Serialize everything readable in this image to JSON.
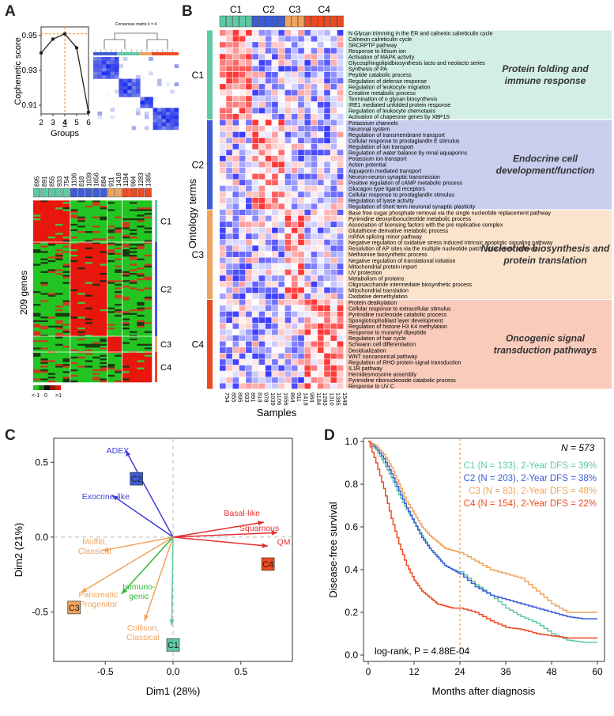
{
  "panels": {
    "A": "A",
    "B": "B",
    "C": "C",
    "D": "D"
  },
  "colors": {
    "C1": "#5fc9a3",
    "C2": "#3d5cd6",
    "C3": "#f0a35e",
    "C4": "#ee4a22",
    "bandC1": "#d3efe3",
    "bandC2": "#c9ceef",
    "bandC3": "#fbe3cc",
    "bandC4": "#f9cbbb"
  },
  "panelA": {
    "coph": {
      "chart_data": {
        "type": "line",
        "x": [
          2,
          3,
          4,
          5,
          6
        ],
        "y": [
          0.94,
          0.948,
          0.951,
          0.943,
          0.906
        ],
        "xlabel": "Groups",
        "ylabel": "Cophenetic score",
        "xlim": [
          2,
          6
        ],
        "ylim": [
          0.905,
          0.955
        ],
        "xticks": [
          "2",
          "3",
          "4",
          "5",
          "6"
        ],
        "yticks": [
          "0.95",
          "0.93",
          "0.91"
        ],
        "highlight_x": 4
      }
    },
    "consensus_title": "Consensus matrix k = 4",
    "genes_label": "209 genes",
    "sample_ids": [
      "895",
      "891",
      "855",
      "933",
      "754",
      "1106",
      "818",
      "1039",
      "1656",
      "884",
      "911",
      "1418",
      "1184",
      "984",
      "1283",
      "1385"
    ],
    "cluster_labels": [
      "C1",
      "C2",
      "C3",
      "C4"
    ],
    "scale_labels": [
      "<-1",
      "0",
      ">1"
    ]
  },
  "panelB": {
    "top_clusters": [
      "C1",
      "C2",
      "C3",
      "C4"
    ],
    "y_axis": "Ontology terms",
    "x_axis": "Samples",
    "samples": [
      "754",
      "855",
      "895",
      "933",
      "891",
      "818",
      "978",
      "1039",
      "1106",
      "1656",
      "864",
      "911",
      "1418",
      "984",
      "1184",
      "1283",
      "1310",
      "1385",
      "1548"
    ],
    "groups": [
      {
        "cluster": "C1",
        "label": "Protein folding and immune response",
        "terms": [
          "N Glycan trimming in the ER and calnexin calreticulin cycle",
          "Calnexin calreticulin cycle",
          "SRCRPTP pathway",
          "Response to lithium ion",
          "Activation of MAPK activity",
          "Glycosphingolipidbiosynthesis lacto and neolacto series",
          "Synthesis of PA",
          "Peptide catabolic process",
          "Regulation of defense response",
          "Regulation of leukocyte migration",
          "Creatine metabolic process",
          "Termination of o glycan biosynthesis",
          "IRE1 mediated unfolded protein response",
          "Regulation of leukocyte chemotaxis",
          "Activation of chaperone genes by XBP1S"
        ]
      },
      {
        "cluster": "C2",
        "label": "Endocrine cell development/function",
        "terms": [
          "Potassium channels",
          "Neuronal system",
          "Regulation of transmembrane transport",
          "Cellular response to prostaglandin E stimulus",
          "Regulation of ion transport",
          "Regulation of water balance by renal aquaporins",
          "Potassium ion transport",
          "Action potential",
          "Aquaporin mediated transport",
          "Neuron-neuron synaptic transmission",
          "Positive regulation of cAMP metabolic process",
          "Glucagon type ligand receptors",
          "Cellular response to prostaglandin stimulus",
          "Regulation of lyase activity",
          "Regulation of short term neuronal synaptic plasticity"
        ]
      },
      {
        "cluster": "C3",
        "label": "Nucleotide biosynthesis and protein translation",
        "terms": [
          "Base free sugar phosphate removal via the single nucleotide replacement pathway",
          "Pyrimidine deoxyribonucleotide metabolic process",
          "Association of licensing factors with the pre replicative complex",
          "Glutathione derivative metabolic process",
          "mRNA splicing minor pathway",
          "Negative regulation of oxidative stress induced intrinsic apoptotic signaling pathway",
          "Resolution of AP sites via the multiple nucleotide patch replacement pathway",
          "Methionine biosynthetic process",
          "Negative regulation of translational initiation",
          "Mitochondrial protein import",
          "UV protection",
          "Metabolism of proteins",
          "Oligosaccharide intermediate biosynthetic process",
          "Mitochondrial translation",
          "Oxidative demethylation"
        ]
      },
      {
        "cluster": "C4",
        "label": "Oncogenic signal transduction pathways",
        "terms": [
          "Protein dealkylation",
          "Cellular response to extracellular stimulus",
          "Pyrimidine nucleoside catabolic process",
          "Spongiotrophoblast layer development",
          "Regulation of histone H3 K4 methylation",
          "Response to muramyl dipeptide",
          "Regulation of hair cycle",
          "Schwann cell differentiation",
          "Decidualization",
          "WNT noncanonical pathway",
          "Regulation of RHO protein signal transduction",
          "IL1R pathway",
          "Hemidesmosome assembly",
          "Pyrimidine ribonucleoside catabolic process",
          "Response to UV C"
        ]
      }
    ]
  },
  "panelC": {
    "chart_data": {
      "type": "scatter",
      "xlabel": "Dim1 (28%)",
      "ylabel": "Dim2 (21%)",
      "xlim": [
        -0.88,
        0.88
      ],
      "ylim": [
        -0.83,
        0.66
      ],
      "xticks": [
        "-0.5",
        "0.0",
        "0.5"
      ],
      "yticks": [
        "0.5",
        "0.0",
        "-0.5"
      ],
      "arrows": [
        {
          "name": "ADEX",
          "x": -0.35,
          "y": 0.58,
          "color": "#3d3fd6"
        },
        {
          "name": "Exocrine-like",
          "x": -0.45,
          "y": 0.28,
          "color": "#3d3fd6"
        },
        {
          "name": "Basal-like",
          "x": 0.67,
          "y": 0.1,
          "color": "#e53030"
        },
        {
          "name": "Squamous",
          "x": 0.77,
          "y": 0.03,
          "color": "#e53030"
        },
        {
          "name": "QM",
          "x": 0.7,
          "y": -0.06,
          "color": "#e53030"
        },
        {
          "name": "Moffitt, Classical",
          "x": -0.52,
          "y": -0.09,
          "color": "#f0a35e"
        },
        {
          "name": "Pancreatic Progenitor",
          "x": -0.68,
          "y": -0.37,
          "color": "#f0a35e"
        },
        {
          "name": "Immuno-genic",
          "x": -0.38,
          "y": -0.38,
          "color": "#32b832"
        },
        {
          "name": "Collison, Classical",
          "x": -0.21,
          "y": -0.56,
          "color": "#f0a35e"
        },
        {
          "name": "C1",
          "x": -0.01,
          "y": -0.59,
          "color": "#5fc9a3"
        }
      ],
      "points": [
        {
          "name": "C2",
          "x": -0.27,
          "y": 0.39
        },
        {
          "name": "C4",
          "x": 0.7,
          "y": -0.18
        },
        {
          "name": "C3",
          "x": -0.73,
          "y": -0.47
        },
        {
          "name": "C1",
          "x": 0.0,
          "y": -0.72
        }
      ]
    }
  },
  "panelD": {
    "chart_data": {
      "type": "line",
      "xlabel": "Months after diagnosis",
      "ylabel": "Disease-free survival",
      "xlim": [
        0,
        60
      ],
      "ylim": [
        0,
        1
      ],
      "xticks": [
        "0",
        "12",
        "24",
        "36",
        "48",
        "60"
      ],
      "yticks": [
        "1.0",
        "0.8",
        "0.6",
        "0.4",
        "0.2",
        "0.0"
      ],
      "series": [
        {
          "name": "C1",
          "x": [
            0,
            2,
            4,
            6,
            8,
            10,
            12,
            14,
            16,
            18,
            20,
            22,
            24,
            28,
            32,
            36,
            40,
            44,
            48,
            52,
            56,
            60
          ],
          "y": [
            1,
            0.96,
            0.9,
            0.83,
            0.75,
            0.68,
            0.62,
            0.56,
            0.5,
            0.46,
            0.42,
            0.4,
            0.39,
            0.33,
            0.28,
            0.22,
            0.18,
            0.15,
            0.1,
            0.07,
            0.06,
            0.06
          ]
        },
        {
          "name": "C2",
          "x": [
            0,
            2,
            4,
            6,
            8,
            10,
            12,
            14,
            16,
            18,
            20,
            22,
            24,
            28,
            32,
            36,
            40,
            44,
            48,
            52,
            56,
            60
          ],
          "y": [
            1,
            0.97,
            0.92,
            0.85,
            0.77,
            0.69,
            0.62,
            0.55,
            0.5,
            0.46,
            0.42,
            0.4,
            0.38,
            0.32,
            0.28,
            0.26,
            0.24,
            0.22,
            0.2,
            0.18,
            0.17,
            0.17
          ]
        },
        {
          "name": "C3",
          "x": [
            0,
            2,
            4,
            6,
            8,
            10,
            12,
            14,
            16,
            18,
            20,
            22,
            24,
            28,
            32,
            36,
            40,
            44,
            48,
            52,
            56,
            60
          ],
          "y": [
            1,
            0.98,
            0.94,
            0.88,
            0.8,
            0.72,
            0.66,
            0.6,
            0.56,
            0.53,
            0.5,
            0.49,
            0.48,
            0.44,
            0.4,
            0.38,
            0.36,
            0.3,
            0.24,
            0.2,
            0.2,
            0.2
          ]
        },
        {
          "name": "C4",
          "x": [
            0,
            2,
            4,
            6,
            8,
            10,
            12,
            14,
            16,
            18,
            20,
            22,
            24,
            28,
            32,
            36,
            40,
            44,
            48,
            52,
            56,
            60
          ],
          "y": [
            1,
            0.9,
            0.78,
            0.64,
            0.52,
            0.42,
            0.35,
            0.3,
            0.27,
            0.24,
            0.23,
            0.22,
            0.22,
            0.2,
            0.16,
            0.13,
            0.12,
            0.1,
            0.09,
            0.08,
            0.08,
            0.08
          ]
        }
      ],
      "vline_x": 24,
      "legend": [
        {
          "cluster": "C1",
          "text": "C1 (N = 133), 2-Year DFS = 39%"
        },
        {
          "cluster": "C2",
          "text": "C2 (N = 203), 2-Year DFS = 38%"
        },
        {
          "cluster": "C3",
          "text": "C3 (N = 83),   2-Year DFS = 48%"
        },
        {
          "cluster": "C4",
          "text": "C4 (N = 154), 2-Year DFS = 22%"
        }
      ],
      "total": "N = 573",
      "pvalue": "log-rank, P = 4.88E-04"
    }
  }
}
